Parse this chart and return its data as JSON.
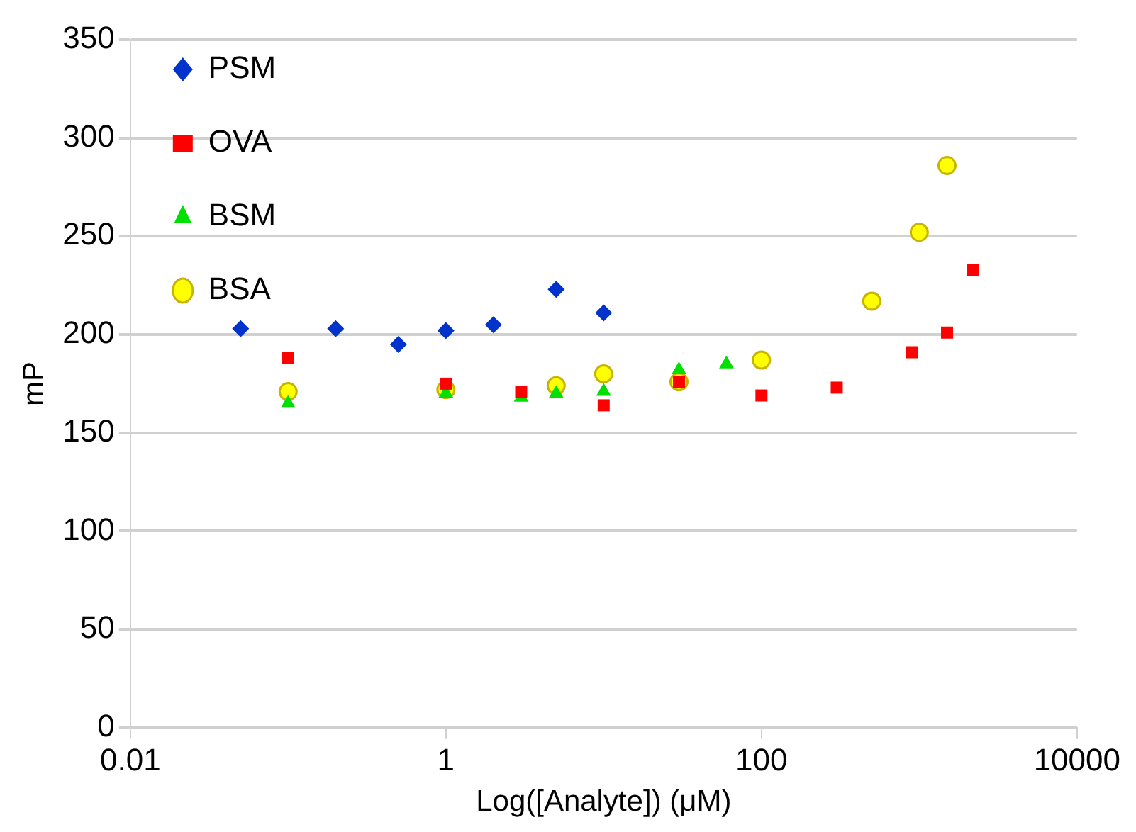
{
  "chart_data": {
    "type": "scatter",
    "xlabel": "Log([Analyte]) (μM)",
    "ylabel": "mP",
    "log": "x",
    "grid": "y",
    "legend": "top left",
    "xlim": [
      0.01,
      10000
    ],
    "xticks": [
      0.01,
      1,
      100,
      10000
    ],
    "ylim": [
      0,
      350
    ],
    "yticks": [
      0,
      50,
      100,
      150,
      200,
      250,
      300,
      350
    ],
    "series": [
      {
        "name": "PSM",
        "color": "#0033cc",
        "marker": "diamond",
        "x": [
          0.05,
          0.2,
          0.5,
          1,
          2,
          5,
          10
        ],
        "values": [
          203,
          203,
          195,
          202,
          205,
          223,
          211
        ]
      },
      {
        "name": "OVA",
        "color": "#ff0000",
        "marker": "square",
        "x": [
          0.1,
          1,
          3,
          10,
          30,
          100,
          300,
          900,
          1500,
          2200
        ],
        "values": [
          188,
          175,
          171,
          164,
          176,
          169,
          173,
          191,
          201,
          233
        ]
      },
      {
        "name": "BSM",
        "color": "#00e000",
        "marker": "triangle",
        "x": [
          0.1,
          1,
          3,
          5,
          10,
          30,
          60
        ],
        "values": [
          165,
          170,
          168,
          170,
          171,
          182,
          185
        ]
      },
      {
        "name": "BSA",
        "color": "#ffff00",
        "marker": "circle",
        "x": [
          0.1,
          1,
          5,
          10,
          30,
          100,
          500,
          1000,
          1500
        ],
        "values": [
          171,
          172,
          174,
          180,
          176,
          187,
          217,
          252,
          286
        ]
      }
    ]
  }
}
